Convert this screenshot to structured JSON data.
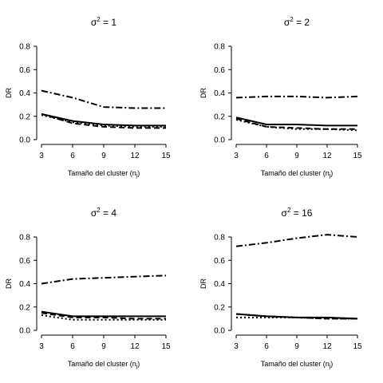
{
  "chart_data": [
    {
      "type": "line",
      "title": "σ² = 1",
      "title_base": "σ",
      "title_sup": "2",
      "title_rest": " = 1",
      "xlabel": "Tamaño del cluster (n",
      "xlabel_sub": "j",
      "xlabel_end": ")",
      "ylabel": "DR",
      "x": [
        3,
        6,
        9,
        12,
        15
      ],
      "xticks": [
        3,
        6,
        9,
        12,
        15
      ],
      "yticks": [
        0.0,
        0.2,
        0.4,
        0.6,
        0.8
      ],
      "xlim": [
        3,
        15
      ],
      "ylim": [
        0,
        0.8
      ],
      "series": [
        {
          "style": "solid",
          "values": [
            0.22,
            0.16,
            0.13,
            0.12,
            0.12
          ]
        },
        {
          "style": "dashed",
          "values": [
            0.22,
            0.14,
            0.11,
            0.1,
            0.1
          ]
        },
        {
          "style": "dotted",
          "values": [
            0.21,
            0.15,
            0.12,
            0.11,
            0.11
          ]
        },
        {
          "style": "dashdot",
          "values": [
            0.42,
            0.36,
            0.28,
            0.27,
            0.27
          ]
        }
      ]
    },
    {
      "type": "line",
      "title": "σ² = 2",
      "title_base": "σ",
      "title_sup": "2",
      "title_rest": " = 2",
      "xlabel": "Tamaño del cluster (n",
      "xlabel_sub": "j",
      "xlabel_end": ")",
      "ylabel": "DR",
      "x": [
        3,
        6,
        9,
        12,
        15
      ],
      "xticks": [
        3,
        6,
        9,
        12,
        15
      ],
      "yticks": [
        0.0,
        0.2,
        0.4,
        0.6,
        0.8
      ],
      "xlim": [
        3,
        15
      ],
      "ylim": [
        0,
        0.8
      ],
      "series": [
        {
          "style": "solid",
          "values": [
            0.19,
            0.13,
            0.13,
            0.12,
            0.12
          ]
        },
        {
          "style": "dashed",
          "values": [
            0.18,
            0.11,
            0.1,
            0.09,
            0.09
          ]
        },
        {
          "style": "dotted",
          "values": [
            0.17,
            0.11,
            0.09,
            0.09,
            0.08
          ]
        },
        {
          "style": "dashdot",
          "values": [
            0.36,
            0.37,
            0.37,
            0.36,
            0.37
          ]
        }
      ]
    },
    {
      "type": "line",
      "title": "σ² = 4",
      "title_base": "σ",
      "title_sup": "2",
      "title_rest": " = 4",
      "xlabel": "Tamaño del cluster (n",
      "xlabel_sub": "j",
      "xlabel_end": ")",
      "ylabel": "DR",
      "x": [
        3,
        6,
        9,
        12,
        15
      ],
      "xticks": [
        3,
        6,
        9,
        12,
        15
      ],
      "yticks": [
        0.0,
        0.2,
        0.4,
        0.6,
        0.8
      ],
      "xlim": [
        3,
        15
      ],
      "ylim": [
        0,
        0.8
      ],
      "series": [
        {
          "style": "solid",
          "values": [
            0.16,
            0.12,
            0.12,
            0.12,
            0.12
          ]
        },
        {
          "style": "dashed",
          "values": [
            0.15,
            0.11,
            0.11,
            0.1,
            0.1
          ]
        },
        {
          "style": "dotted",
          "values": [
            0.13,
            0.09,
            0.09,
            0.09,
            0.09
          ]
        },
        {
          "style": "dashdot",
          "values": [
            0.4,
            0.44,
            0.45,
            0.46,
            0.47
          ]
        }
      ]
    },
    {
      "type": "line",
      "title": "σ² = 16",
      "title_base": "σ",
      "title_sup": "2",
      "title_rest": " = 16",
      "xlabel": "Tamaño del cluster (n",
      "xlabel_sub": "j",
      "xlabel_end": ")",
      "ylabel": "DR",
      "x": [
        3,
        6,
        9,
        12,
        15
      ],
      "xticks": [
        3,
        6,
        9,
        12,
        15
      ],
      "yticks": [
        0.0,
        0.2,
        0.4,
        0.6,
        0.8
      ],
      "xlim": [
        3,
        15
      ],
      "ylim": [
        0,
        0.8
      ],
      "series": [
        {
          "style": "solid",
          "values": [
            0.14,
            0.12,
            0.11,
            0.11,
            0.1
          ]
        },
        {
          "style": "dashed",
          "values": [
            0.14,
            0.12,
            0.11,
            0.1,
            0.1
          ]
        },
        {
          "style": "dotted",
          "values": [
            0.11,
            0.11,
            0.11,
            0.1,
            0.1
          ]
        },
        {
          "style": "dashdot",
          "values": [
            0.72,
            0.75,
            0.79,
            0.82,
            0.8
          ]
        }
      ]
    }
  ]
}
